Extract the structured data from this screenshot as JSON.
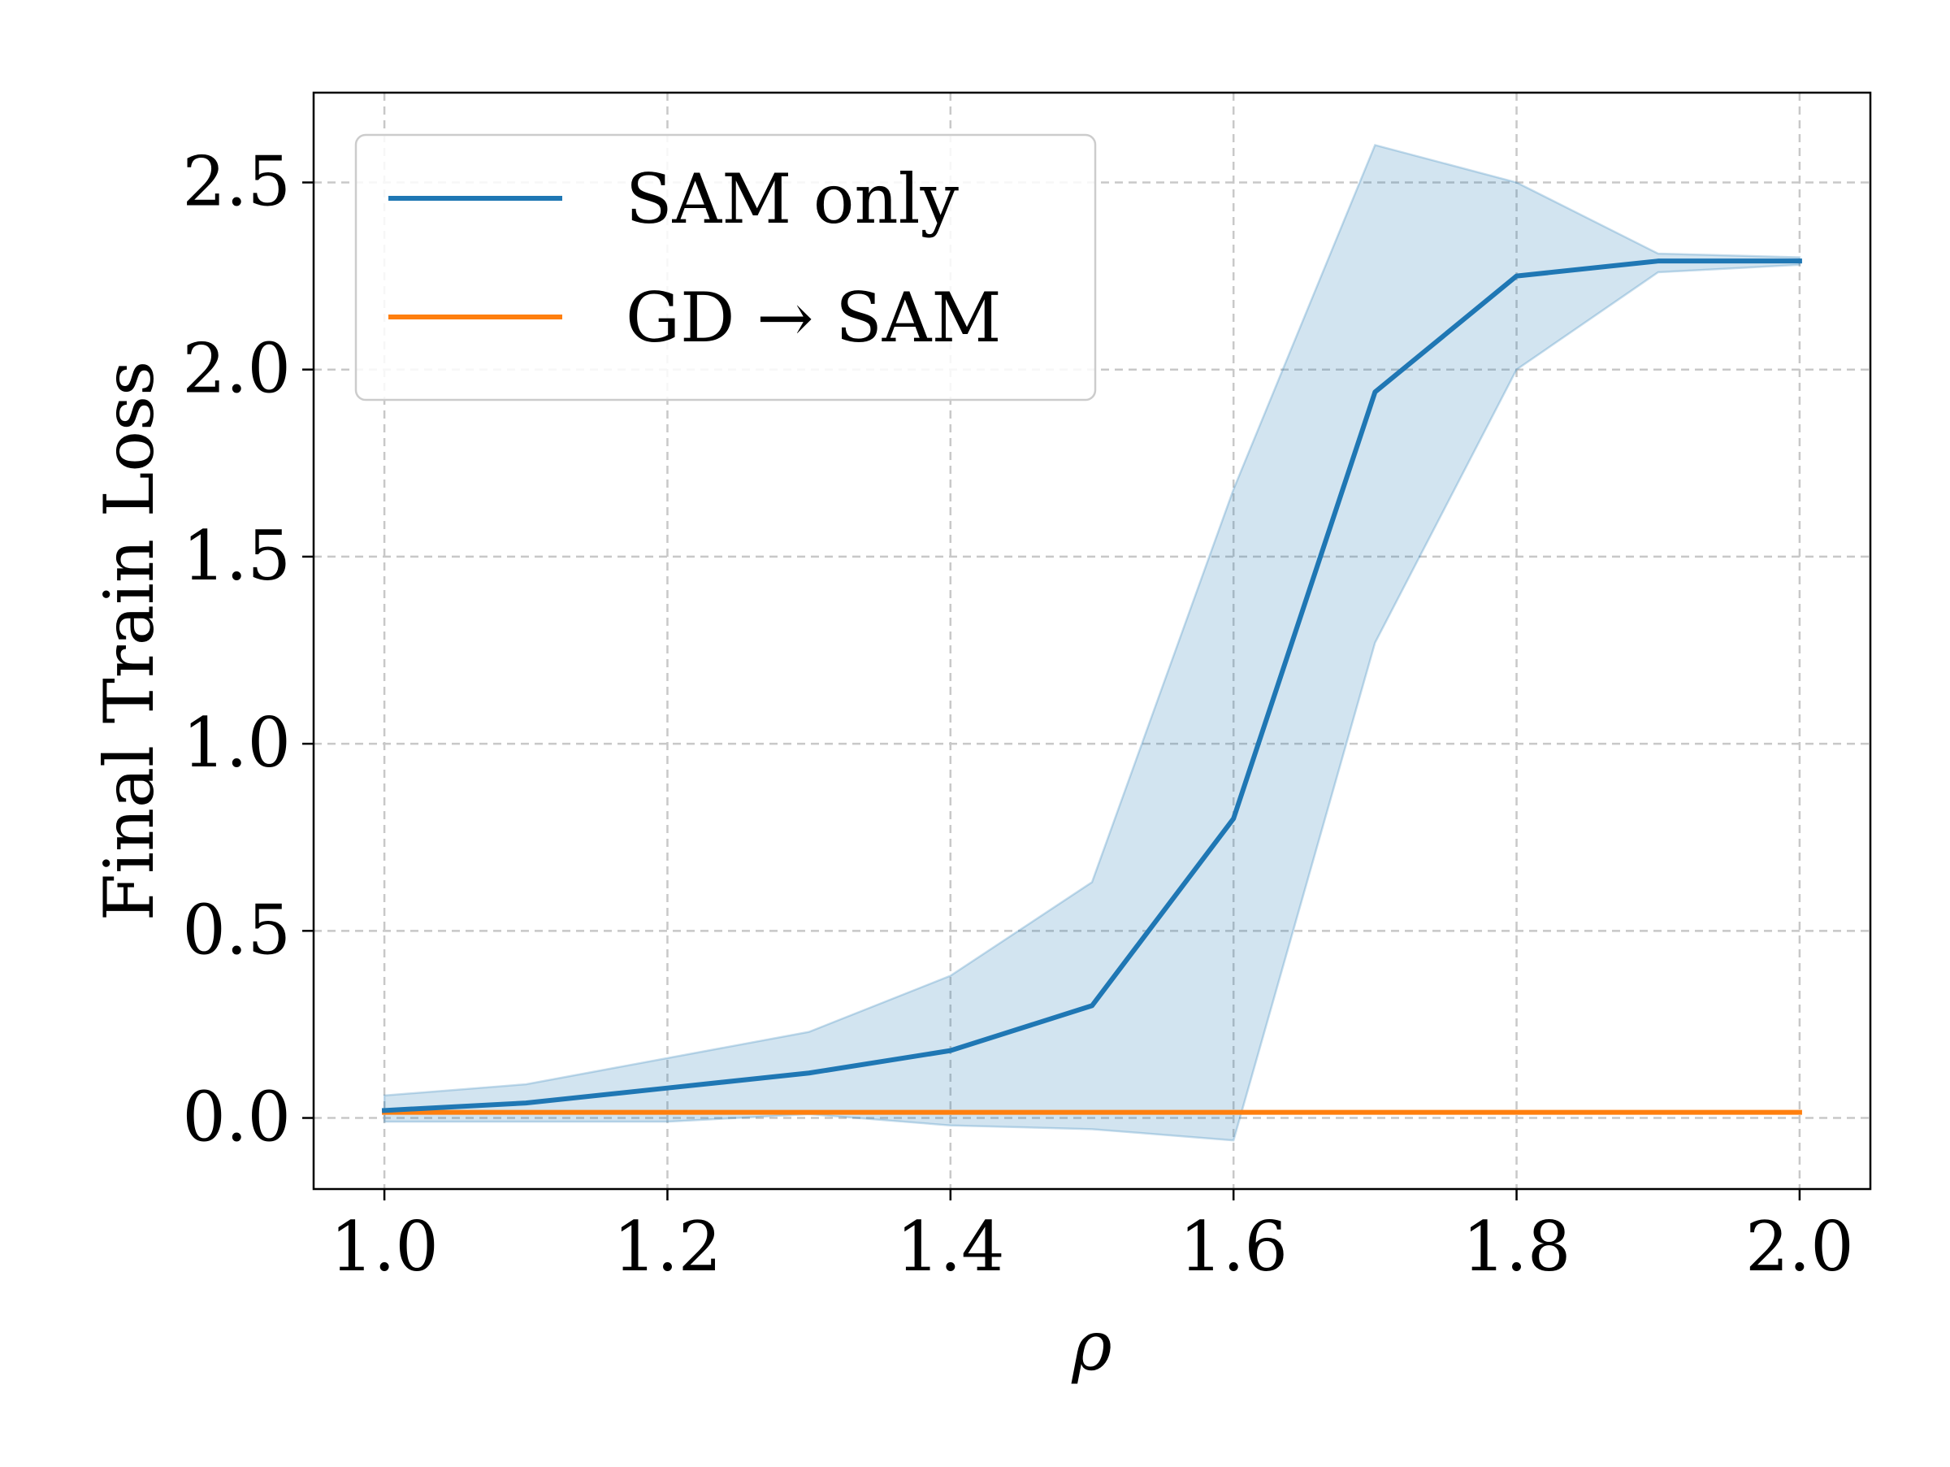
{
  "chart_data": {
    "type": "line",
    "xlabel": "ρ",
    "ylabel": "Final Train Loss",
    "xlim": [
      0.95,
      2.05
    ],
    "ylim": [
      -0.19,
      2.74
    ],
    "xticks": [
      1.0,
      1.2,
      1.4,
      1.6,
      1.8,
      2.0
    ],
    "xtick_labels": [
      "1.0",
      "1.2",
      "1.4",
      "1.6",
      "1.8",
      "2.0"
    ],
    "yticks": [
      0.0,
      0.5,
      1.0,
      1.5,
      2.0,
      2.5
    ],
    "ytick_labels": [
      "0.0",
      "0.5",
      "1.0",
      "1.5",
      "2.0",
      "2.5"
    ],
    "grid": true,
    "legend_position": "top-left",
    "x": [
      1.0,
      1.1,
      1.2,
      1.3,
      1.4,
      1.5,
      1.6,
      1.7,
      1.8,
      1.9,
      2.0
    ],
    "series": [
      {
        "name": "SAM only",
        "color": "#1f77b4",
        "values": [
          0.02,
          0.04,
          0.08,
          0.12,
          0.18,
          0.3,
          0.8,
          1.94,
          2.25,
          2.29,
          2.29
        ],
        "band_upper": [
          0.06,
          0.09,
          0.16,
          0.23,
          0.38,
          0.63,
          1.68,
          2.6,
          2.5,
          2.31,
          2.3
        ],
        "band_lower": [
          -0.01,
          -0.01,
          -0.01,
          0.01,
          -0.02,
          -0.03,
          -0.06,
          1.27,
          2.0,
          2.26,
          2.28
        ],
        "band_color": "#1f77b4"
      },
      {
        "name": "GD → SAM",
        "color": "#ff7f0e",
        "values": [
          0.015,
          0.015,
          0.015,
          0.015,
          0.015,
          0.015,
          0.015,
          0.015,
          0.015,
          0.015,
          0.015
        ]
      }
    ]
  }
}
